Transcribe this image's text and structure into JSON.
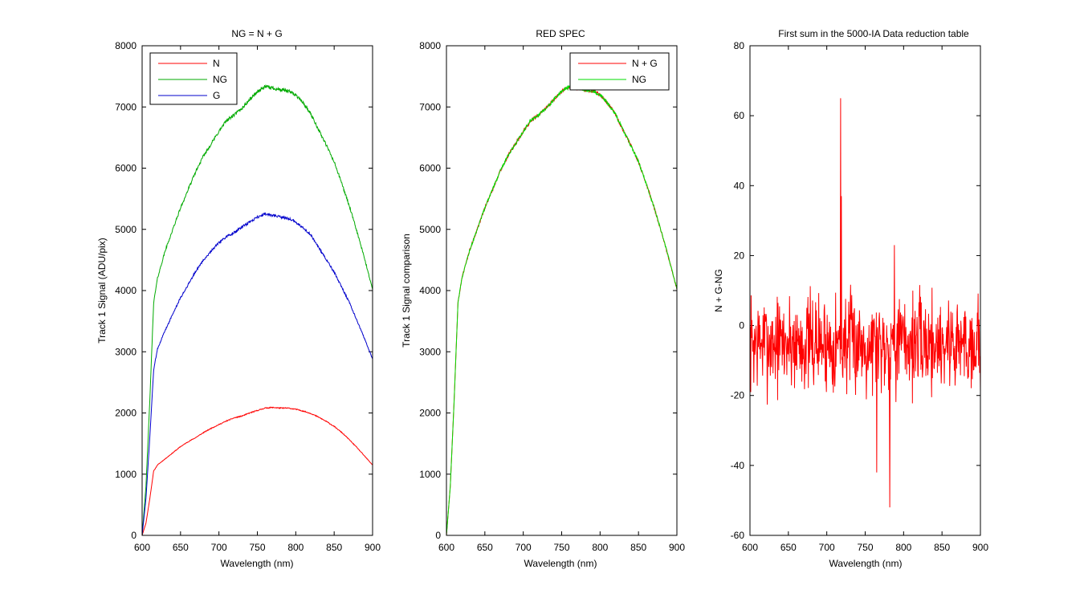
{
  "chart_data": [
    {
      "type": "line",
      "title": "NG = N + G",
      "xlabel": "Wavelength (nm)",
      "ylabel": "Track 1 Signal (ADU/pix)",
      "xlim": [
        600,
        900
      ],
      "ylim": [
        0,
        8000
      ],
      "xticks": [
        600,
        650,
        700,
        750,
        800,
        850,
        900
      ],
      "yticks": [
        0,
        1000,
        2000,
        3000,
        4000,
        5000,
        6000,
        7000,
        8000
      ],
      "grid": false,
      "legend_position": "top-left",
      "x": [
        600,
        605,
        610,
        615,
        620,
        630,
        640,
        650,
        660,
        670,
        680,
        690,
        700,
        710,
        720,
        730,
        740,
        750,
        760,
        770,
        780,
        790,
        800,
        810,
        820,
        830,
        840,
        850,
        860,
        870,
        880,
        890,
        900
      ],
      "series": [
        {
          "name": "N",
          "color": "#ff0000",
          "values": [
            0,
            200,
            600,
            1050,
            1150,
            1250,
            1350,
            1450,
            1530,
            1600,
            1680,
            1750,
            1810,
            1870,
            1920,
            1950,
            2000,
            2040,
            2080,
            2090,
            2080,
            2080,
            2060,
            2030,
            1990,
            1930,
            1860,
            1780,
            1680,
            1560,
            1430,
            1290,
            1150
          ]
        },
        {
          "name": "NG",
          "color": "#00aa00",
          "values": [
            0,
            800,
            2200,
            3800,
            4200,
            4650,
            5000,
            5350,
            5650,
            5950,
            6200,
            6400,
            6600,
            6780,
            6870,
            6980,
            7120,
            7250,
            7330,
            7310,
            7280,
            7260,
            7200,
            7060,
            6880,
            6620,
            6370,
            6100,
            5750,
            5370,
            4950,
            4500,
            4020
          ]
        },
        {
          "name": "G",
          "color": "#0000cc",
          "values": [
            0,
            600,
            1600,
            2700,
            3050,
            3350,
            3620,
            3880,
            4100,
            4320,
            4500,
            4650,
            4780,
            4880,
            4950,
            5040,
            5120,
            5200,
            5250,
            5230,
            5200,
            5180,
            5120,
            5020,
            4900,
            4700,
            4500,
            4300,
            4050,
            3800,
            3500,
            3200,
            2880
          ]
        }
      ]
    },
    {
      "type": "line",
      "title": "RED SPEC",
      "xlabel": "Wavelength (nm)",
      "ylabel": "Track 1 Signal comparison",
      "xlim": [
        600,
        900
      ],
      "ylim": [
        0,
        8000
      ],
      "xticks": [
        600,
        650,
        700,
        750,
        800,
        850,
        900
      ],
      "yticks": [
        0,
        1000,
        2000,
        3000,
        4000,
        5000,
        6000,
        7000,
        8000
      ],
      "grid": false,
      "legend_position": "top-right",
      "x": [
        600,
        605,
        610,
        615,
        620,
        630,
        640,
        650,
        660,
        670,
        680,
        690,
        700,
        710,
        720,
        730,
        740,
        750,
        760,
        770,
        780,
        790,
        800,
        810,
        820,
        830,
        840,
        850,
        860,
        870,
        880,
        890,
        900
      ],
      "series": [
        {
          "name": "N + G",
          "color": "#ff0000",
          "values": [
            0,
            800,
            2200,
            3800,
            4200,
            4650,
            5000,
            5350,
            5650,
            5950,
            6200,
            6400,
            6600,
            6780,
            6870,
            6980,
            7120,
            7250,
            7330,
            7310,
            7280,
            7260,
            7200,
            7060,
            6880,
            6620,
            6370,
            6100,
            5750,
            5370,
            4950,
            4500,
            4020
          ]
        },
        {
          "name": "NG",
          "color": "#00dd00",
          "values": [
            0,
            800,
            2200,
            3800,
            4200,
            4650,
            5000,
            5350,
            5650,
            5950,
            6200,
            6400,
            6600,
            6780,
            6870,
            6980,
            7120,
            7250,
            7330,
            7310,
            7280,
            7260,
            7200,
            7060,
            6880,
            6620,
            6370,
            6100,
            5750,
            5370,
            4950,
            4500,
            4020
          ]
        }
      ]
    },
    {
      "type": "line",
      "title": "First sum in the 5000-IA Data reduction table",
      "xlabel": "Wavelength (nm)",
      "ylabel": "N + G-NG",
      "xlim": [
        600,
        900
      ],
      "ylim": [
        -60,
        80
      ],
      "xticks": [
        600,
        650,
        700,
        750,
        800,
        850,
        900
      ],
      "yticks": [
        -60,
        -40,
        -20,
        0,
        20,
        40,
        60,
        80
      ],
      "grid": false,
      "series": [
        {
          "color": "#ff0000",
          "x_step": 0.5,
          "seed": 7,
          "mean": -5,
          "amplitude": 12,
          "spikes": [
            [
              718,
              65
            ],
            [
              719,
              37
            ],
            [
              788,
              23
            ],
            [
              782,
              -52
            ],
            [
              765,
              -42
            ]
          ]
        }
      ]
    }
  ]
}
